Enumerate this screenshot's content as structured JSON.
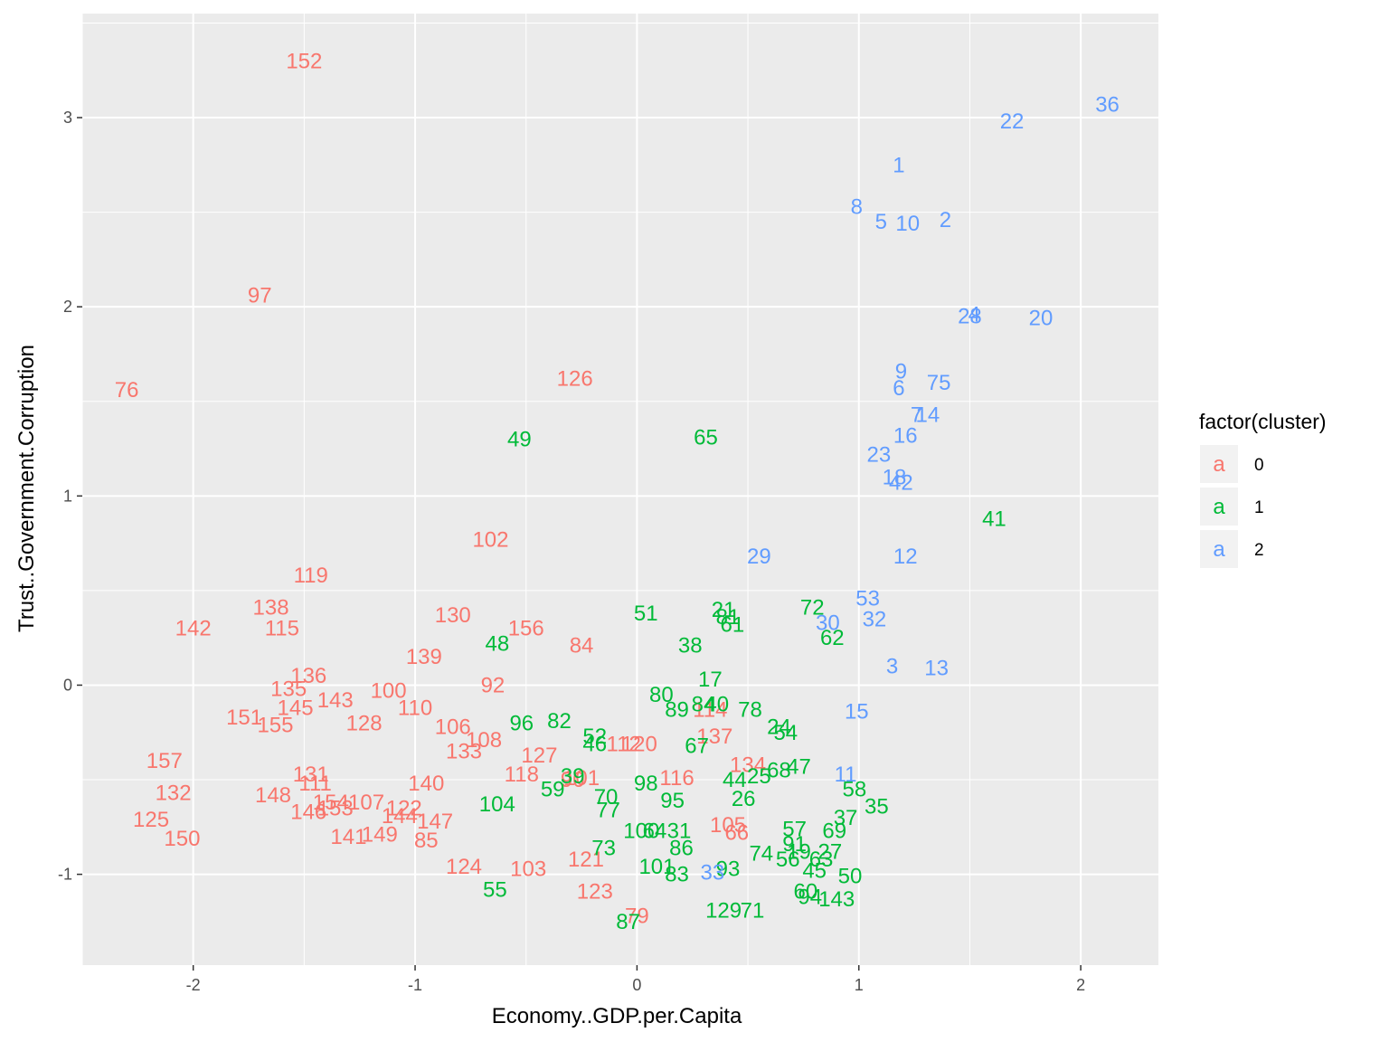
{
  "chart_data": {
    "type": "scatter",
    "title": "",
    "xlabel": "Economy..GDP.per.Capita",
    "ylabel": "Trust..Government.Corruption",
    "xlim": [
      -2.5,
      2.35
    ],
    "ylim": [
      -1.48,
      3.55
    ],
    "xticks": [
      -2,
      -1,
      0,
      1,
      2
    ],
    "yticks": [
      -1,
      0,
      1,
      2,
      3
    ],
    "xtick_labels": [
      "-2",
      "-1",
      "0",
      "1",
      "2"
    ],
    "ytick_labels": [
      "-1",
      "0",
      "1",
      "2",
      "3"
    ],
    "grid": true,
    "marker_text_from": "label",
    "legend": {
      "title": "factor(cluster)",
      "position": "right",
      "key_glyph": "a",
      "entries": [
        {
          "key": "0",
          "color": "#F8766D"
        },
        {
          "key": "1",
          "color": "#00BA38"
        },
        {
          "key": "2",
          "color": "#619CFF"
        }
      ]
    },
    "series": [
      {
        "key": "0",
        "color": "#F8766D",
        "points": [
          {
            "label": "152",
            "x": -1.5,
            "y": 3.3
          },
          {
            "label": "97",
            "x": -1.7,
            "y": 2.06
          },
          {
            "label": "76",
            "x": -2.3,
            "y": 1.56
          },
          {
            "label": "126",
            "x": -0.28,
            "y": 1.62
          },
          {
            "label": "102",
            "x": -0.66,
            "y": 0.77
          },
          {
            "label": "119",
            "x": -1.47,
            "y": 0.58
          },
          {
            "label": "138",
            "x": -1.65,
            "y": 0.41
          },
          {
            "label": "142",
            "x": -2.0,
            "y": 0.3
          },
          {
            "label": "115",
            "x": -1.6,
            "y": 0.3
          },
          {
            "label": "130",
            "x": -0.83,
            "y": 0.37
          },
          {
            "label": "156",
            "x": -0.5,
            "y": 0.3
          },
          {
            "label": "84",
            "x": -0.25,
            "y": 0.21
          },
          {
            "label": "139",
            "x": -0.96,
            "y": 0.15
          },
          {
            "label": "92",
            "x": -0.65,
            "y": 0.0
          },
          {
            "label": "136",
            "x": -1.48,
            "y": 0.05
          },
          {
            "label": "135",
            "x": -1.57,
            "y": -0.02
          },
          {
            "label": "143",
            "x": -1.36,
            "y": -0.08
          },
          {
            "label": "100",
            "x": -1.12,
            "y": -0.03
          },
          {
            "label": "145",
            "x": -1.54,
            "y": -0.12
          },
          {
            "label": "110",
            "x": -1.0,
            "y": -0.12
          },
          {
            "label": "151",
            "x": -1.77,
            "y": -0.17
          },
          {
            "label": "155",
            "x": -1.63,
            "y": -0.21
          },
          {
            "label": "128",
            "x": -1.23,
            "y": -0.2
          },
          {
            "label": "106",
            "x": -0.83,
            "y": -0.22
          },
          {
            "label": "108",
            "x": -0.69,
            "y": -0.29
          },
          {
            "label": "133",
            "x": -0.78,
            "y": -0.35
          },
          {
            "label": "127",
            "x": -0.44,
            "y": -0.37
          },
          {
            "label": "112",
            "x": -0.06,
            "y": -0.31
          },
          {
            "label": "120",
            "x": 0.01,
            "y": -0.31
          },
          {
            "label": "137",
            "x": 0.35,
            "y": -0.27
          },
          {
            "label": "114",
            "x": 0.33,
            "y": -0.13
          },
          {
            "label": "134",
            "x": 0.5,
            "y": -0.42
          },
          {
            "label": "157",
            "x": -2.13,
            "y": -0.4
          },
          {
            "label": "131",
            "x": -1.47,
            "y": -0.47
          },
          {
            "label": "118",
            "x": -0.52,
            "y": -0.47
          },
          {
            "label": "116",
            "x": 0.18,
            "y": -0.49
          },
          {
            "label": "132",
            "x": -2.09,
            "y": -0.57
          },
          {
            "label": "111",
            "x": -1.45,
            "y": -0.52
          },
          {
            "label": "140",
            "x": -0.95,
            "y": -0.52
          },
          {
            "label": "90",
            "x": -0.29,
            "y": -0.5
          },
          {
            "label": "101",
            "x": -0.25,
            "y": -0.49
          },
          {
            "label": "148",
            "x": -1.64,
            "y": -0.58
          },
          {
            "label": "154",
            "x": -1.38,
            "y": -0.62
          },
          {
            "label": "153",
            "x": -1.36,
            "y": -0.65
          },
          {
            "label": "107",
            "x": -1.22,
            "y": -0.62
          },
          {
            "label": "146",
            "x": -1.48,
            "y": -0.67
          },
          {
            "label": "122",
            "x": -1.05,
            "y": -0.65
          },
          {
            "label": "144",
            "x": -1.07,
            "y": -0.69
          },
          {
            "label": "147",
            "x": -0.91,
            "y": -0.72
          },
          {
            "label": "125",
            "x": -2.19,
            "y": -0.71
          },
          {
            "label": "149",
            "x": -1.16,
            "y": -0.79
          },
          {
            "label": "141",
            "x": -1.3,
            "y": -0.8
          },
          {
            "label": "85",
            "x": -0.95,
            "y": -0.82
          },
          {
            "label": "150",
            "x": -2.05,
            "y": -0.81
          },
          {
            "label": "105",
            "x": 0.41,
            "y": -0.74
          },
          {
            "label": "66",
            "x": 0.45,
            "y": -0.78
          },
          {
            "label": "124",
            "x": -0.78,
            "y": -0.96
          },
          {
            "label": "103",
            "x": -0.49,
            "y": -0.97
          },
          {
            "label": "121",
            "x": -0.23,
            "y": -0.92
          },
          {
            "label": "123",
            "x": -0.19,
            "y": -1.09
          },
          {
            "label": "79",
            "x": 0.0,
            "y": -1.22
          }
        ]
      },
      {
        "key": "1",
        "color": "#00BA38",
        "points": [
          {
            "label": "49",
            "x": -0.53,
            "y": 1.3
          },
          {
            "label": "65",
            "x": 0.31,
            "y": 1.31
          },
          {
            "label": "41",
            "x": 1.61,
            "y": 0.88
          },
          {
            "label": "51",
            "x": 0.04,
            "y": 0.38
          },
          {
            "label": "21",
            "x": 0.39,
            "y": 0.4
          },
          {
            "label": "81",
            "x": 0.41,
            "y": 0.36
          },
          {
            "label": "61",
            "x": 0.43,
            "y": 0.32
          },
          {
            "label": "72",
            "x": 0.79,
            "y": 0.41
          },
          {
            "label": "62",
            "x": 0.88,
            "y": 0.25
          },
          {
            "label": "48",
            "x": -0.63,
            "y": 0.22
          },
          {
            "label": "38",
            "x": 0.24,
            "y": 0.21
          },
          {
            "label": "17",
            "x": 0.33,
            "y": 0.03
          },
          {
            "label": "80",
            "x": 0.11,
            "y": -0.05
          },
          {
            "label": "84b",
            "text": "84",
            "x": 0.3,
            "y": -0.1
          },
          {
            "label": "40",
            "x": 0.36,
            "y": -0.1
          },
          {
            "label": "89",
            "x": 0.18,
            "y": -0.13
          },
          {
            "label": "78",
            "x": 0.51,
            "y": -0.13
          },
          {
            "label": "96",
            "x": -0.52,
            "y": -0.2
          },
          {
            "label": "82",
            "x": -0.35,
            "y": -0.19
          },
          {
            "label": "24",
            "x": 0.64,
            "y": -0.22
          },
          {
            "label": "54",
            "x": 0.67,
            "y": -0.25
          },
          {
            "label": "52",
            "x": -0.19,
            "y": -0.27
          },
          {
            "label": "46",
            "x": -0.19,
            "y": -0.31
          },
          {
            "label": "67",
            "x": 0.27,
            "y": -0.32
          },
          {
            "label": "47",
            "x": 0.73,
            "y": -0.43
          },
          {
            "label": "68",
            "x": 0.64,
            "y": -0.45
          },
          {
            "label": "25",
            "x": 0.55,
            "y": -0.48
          },
          {
            "label": "44",
            "x": 0.44,
            "y": -0.5
          },
          {
            "label": "39",
            "x": -0.29,
            "y": -0.48
          },
          {
            "label": "59",
            "x": -0.38,
            "y": -0.55
          },
          {
            "label": "98",
            "x": 0.04,
            "y": -0.52
          },
          {
            "label": "58",
            "x": 0.98,
            "y": -0.55
          },
          {
            "label": "70",
            "x": -0.14,
            "y": -0.59
          },
          {
            "label": "26",
            "x": 0.48,
            "y": -0.6
          },
          {
            "label": "104",
            "x": -0.63,
            "y": -0.63
          },
          {
            "label": "95",
            "x": 0.16,
            "y": -0.61
          },
          {
            "label": "35",
            "x": 1.08,
            "y": -0.64
          },
          {
            "label": "77",
            "x": -0.13,
            "y": -0.66
          },
          {
            "label": "37",
            "x": 0.94,
            "y": -0.7
          },
          {
            "label": "57",
            "x": 0.71,
            "y": -0.76
          },
          {
            "label": "100b",
            "text": "100",
            "x": 0.02,
            "y": -0.77
          },
          {
            "label": "64",
            "x": 0.08,
            "y": -0.77
          },
          {
            "label": "31",
            "x": 0.19,
            "y": -0.77
          },
          {
            "label": "69",
            "x": 0.89,
            "y": -0.77
          },
          {
            "label": "91",
            "x": 0.71,
            "y": -0.84
          },
          {
            "label": "86",
            "x": 0.2,
            "y": -0.86
          },
          {
            "label": "73",
            "x": -0.15,
            "y": -0.86
          },
          {
            "label": "74",
            "x": 0.56,
            "y": -0.89
          },
          {
            "label": "19",
            "x": 0.73,
            "y": -0.88
          },
          {
            "label": "27",
            "x": 0.87,
            "y": -0.88
          },
          {
            "label": "56",
            "x": 0.68,
            "y": -0.92
          },
          {
            "label": "63",
            "x": 0.83,
            "y": -0.92
          },
          {
            "label": "101b",
            "text": "101",
            "x": 0.09,
            "y": -0.96
          },
          {
            "label": "93",
            "x": 0.41,
            "y": -0.97
          },
          {
            "label": "45",
            "x": 0.8,
            "y": -0.98
          },
          {
            "label": "83",
            "x": 0.18,
            "y": -1.0
          },
          {
            "label": "50",
            "x": 0.96,
            "y": -1.01
          },
          {
            "label": "55",
            "x": -0.64,
            "y": -1.08
          },
          {
            "label": "60",
            "x": 0.76,
            "y": -1.09
          },
          {
            "label": "94",
            "x": 0.78,
            "y": -1.12
          },
          {
            "label": "143b",
            "text": "143",
            "x": 0.9,
            "y": -1.13
          },
          {
            "label": "71",
            "x": 0.52,
            "y": -1.19
          },
          {
            "label": "129",
            "x": 0.39,
            "y": -1.19
          },
          {
            "label": "87",
            "x": -0.04,
            "y": -1.25
          }
        ]
      },
      {
        "key": "2",
        "color": "#619CFF",
        "points": [
          {
            "label": "36",
            "x": 2.12,
            "y": 3.07
          },
          {
            "label": "22",
            "x": 1.69,
            "y": 2.98
          },
          {
            "label": "1",
            "x": 1.18,
            "y": 2.75
          },
          {
            "label": "8",
            "x": 0.99,
            "y": 2.53
          },
          {
            "label": "5",
            "x": 1.1,
            "y": 2.45
          },
          {
            "label": "10",
            "x": 1.22,
            "y": 2.44
          },
          {
            "label": "2",
            "x": 1.39,
            "y": 2.46
          },
          {
            "label": "4",
            "x": 1.52,
            "y": 1.96
          },
          {
            "label": "28",
            "x": 1.5,
            "y": 1.95
          },
          {
            "label": "20",
            "x": 1.82,
            "y": 1.94
          },
          {
            "label": "9",
            "x": 1.19,
            "y": 1.66
          },
          {
            "label": "75",
            "x": 1.36,
            "y": 1.6
          },
          {
            "label": "6",
            "x": 1.18,
            "y": 1.57
          },
          {
            "label": "7",
            "x": 1.26,
            "y": 1.43
          },
          {
            "label": "14",
            "x": 1.31,
            "y": 1.43
          },
          {
            "label": "16",
            "x": 1.21,
            "y": 1.32
          },
          {
            "label": "23",
            "x": 1.09,
            "y": 1.22
          },
          {
            "label": "18",
            "x": 1.16,
            "y": 1.1
          },
          {
            "label": "42",
            "x": 1.19,
            "y": 1.07
          },
          {
            "label": "29",
            "x": 0.55,
            "y": 0.68
          },
          {
            "label": "12",
            "x": 1.21,
            "y": 0.68
          },
          {
            "label": "53",
            "x": 1.04,
            "y": 0.46
          },
          {
            "label": "32",
            "x": 1.07,
            "y": 0.35
          },
          {
            "label": "30",
            "x": 0.86,
            "y": 0.33
          },
          {
            "label": "3",
            "x": 1.15,
            "y": 0.1
          },
          {
            "label": "13",
            "x": 1.35,
            "y": 0.09
          },
          {
            "label": "15",
            "x": 0.99,
            "y": -0.14
          },
          {
            "label": "11",
            "x": 0.94,
            "y": -0.47
          },
          {
            "label": "33",
            "x": 0.34,
            "y": -0.99
          }
        ]
      }
    ]
  }
}
